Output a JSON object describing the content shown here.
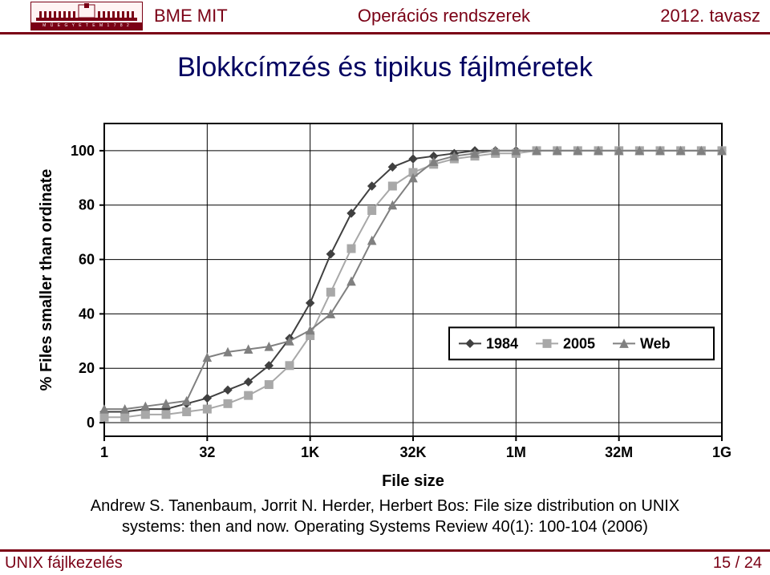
{
  "header": {
    "logo_sub": "M Ű E G Y E T E M  1 7 8 2",
    "left": "BME MIT",
    "center": "Operációs rendszerek",
    "right": "2012. tavasz"
  },
  "title": "Blokkcímzés és tipikus fájlméretek",
  "citation": "Andrew S. Tanenbaum, Jorrit N. Herder, Herbert Bos: File size distribution on UNIX systems: then and now. Operating Systems Review 40(1): 100-104 (2006)",
  "footer": {
    "left": "UNIX fájlkezelés",
    "right": "15 / 24"
  },
  "chart": {
    "type": "line",
    "xlabel": "File size",
    "ylabel": "% Files smaller than ordinate",
    "x_ticks": [
      "1",
      "32",
      "1K",
      "32K",
      "1M",
      "32M",
      "1G"
    ],
    "y_ticks": [
      0,
      20,
      40,
      60,
      80,
      100
    ],
    "ylim": [
      -5,
      110
    ],
    "background_color": "#ffffff",
    "grid_color": "#000000",
    "axis_color": "#000000",
    "label_fontsize": 20,
    "tick_fontsize": 18,
    "marker_size": 5,
    "line_width": 2,
    "legend": {
      "position": "right-middle",
      "border_color": "#000000",
      "items": [
        "1984",
        "2005",
        "Web"
      ]
    },
    "series": [
      {
        "name": "1984",
        "color": "#404040",
        "marker": "diamond",
        "y": [
          4,
          4,
          5,
          5,
          7,
          9,
          12,
          15,
          21,
          31,
          44,
          62,
          77,
          87,
          94,
          97,
          98,
          99,
          100,
          100,
          100,
          100,
          100,
          100,
          100,
          100,
          100,
          100,
          100,
          100,
          100
        ]
      },
      {
        "name": "2005",
        "color": "#a8a8a8",
        "marker": "square",
        "y": [
          2,
          2,
          3,
          3,
          4,
          5,
          7,
          10,
          14,
          21,
          32,
          48,
          64,
          78,
          87,
          92,
          95,
          97,
          98,
          99,
          99,
          100,
          100,
          100,
          100,
          100,
          100,
          100,
          100,
          100,
          100
        ]
      },
      {
        "name": "Web",
        "color": "#808080",
        "marker": "triangle",
        "y": [
          5,
          5,
          6,
          7,
          8,
          24,
          26,
          27,
          28,
          30,
          34,
          40,
          52,
          67,
          80,
          90,
          96,
          98,
          99,
          100,
          100,
          100,
          100,
          100,
          100,
          100,
          100,
          100,
          100,
          100,
          100
        ]
      }
    ]
  }
}
